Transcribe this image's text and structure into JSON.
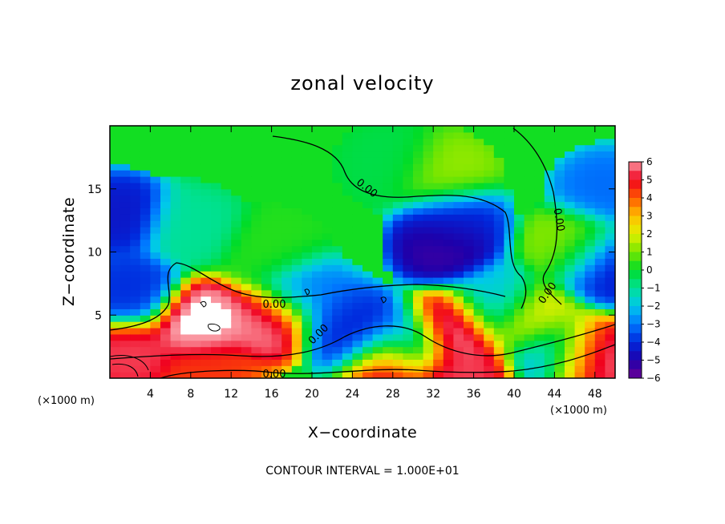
{
  "chart_data": {
    "type": "heatmap",
    "title": "zonal velocity",
    "xlabel": "X−coordinate",
    "ylabel": "Z−coordinate",
    "x_unit": "(×1000 m)",
    "z_unit": "(×1000 m)",
    "x_ticks": [
      "4",
      "8",
      "12",
      "16",
      "20",
      "24",
      "28",
      "32",
      "36",
      "40",
      "44",
      "48"
    ],
    "z_ticks": [
      "5",
      "10",
      "15"
    ],
    "xlim": [
      0,
      50
    ],
    "zlim": [
      0,
      20
    ],
    "colorbar": {
      "min": -6,
      "max": 6,
      "labels": [
        "6",
        "5",
        "4",
        "3",
        "2",
        "1",
        "0",
        "−1",
        "−2",
        "−3",
        "−4",
        "−5",
        "−6"
      ]
    },
    "contour_labels": [
      "0.00",
      "0.00",
      "0.00",
      "0.00",
      "0.00",
      "0.00"
    ],
    "contour_interval_text": "CONTOUR INTERVAL = 1.000E+01",
    "field_features": [
      {
        "x": 33,
        "z": 10.5,
        "value": -5.5
      },
      {
        "x": 34,
        "z": 12.5,
        "value": -4.2
      },
      {
        "x": 1,
        "z": 13,
        "value": -4.5
      },
      {
        "x": 2,
        "z": 7,
        "value": -4.0
      },
      {
        "x": 49,
        "z": 9,
        "value": -4.5
      },
      {
        "x": 49,
        "z": 15,
        "value": -3.2
      },
      {
        "x": 23,
        "z": 4.5,
        "value": -3.5
      },
      {
        "x": 24.5,
        "z": 3.5,
        "value": -5.0
      },
      {
        "x": 19,
        "z": 6.7,
        "value": -3.0
      },
      {
        "x": 29,
        "z": 3.0,
        "value": -4.0
      },
      {
        "x": 44,
        "z": 2.2,
        "value": -3.2
      },
      {
        "x": 38,
        "z": 6.0,
        "value": -2.0
      },
      {
        "x": 9,
        "z": 4.5,
        "value": 6.5
      },
      {
        "x": 16,
        "z": 4.5,
        "value": 6.0
      },
      {
        "x": 33.5,
        "z": 4.0,
        "value": 6.5
      },
      {
        "x": 27.5,
        "z": 1.5,
        "value": 6.2
      },
      {
        "x": 35,
        "z": 0.4,
        "value": 5.5
      },
      {
        "x": 47,
        "z": 1.8,
        "value": 6.2
      },
      {
        "x": 2,
        "z": 1.8,
        "value": 5.5
      },
      {
        "x": 10,
        "z": 0.3,
        "value": 4.5
      },
      {
        "x": 33,
        "z": 16,
        "value": 1.3
      },
      {
        "x": 46,
        "z": 10.5,
        "value": 1.2
      },
      {
        "x": 16,
        "z": 10,
        "value": 0.3
      },
      {
        "x": 28,
        "z": 17,
        "value": -0.3
      },
      {
        "x": 8,
        "z": 12,
        "value": -1.0
      },
      {
        "x": 42,
        "z": 4.5,
        "value": 2.5
      }
    ]
  }
}
